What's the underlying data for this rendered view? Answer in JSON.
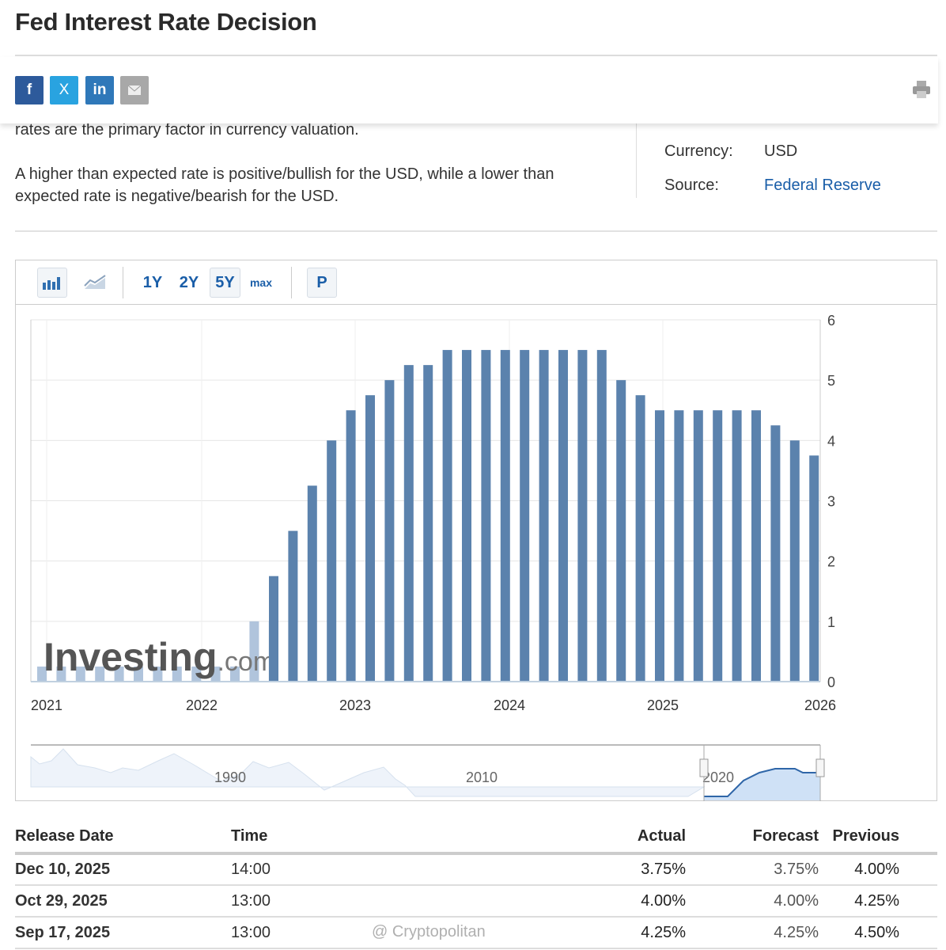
{
  "page": {
    "title": "Fed Interest Rate Decision"
  },
  "share": {
    "facebook": "f",
    "twitter": "X",
    "linkedin": "in",
    "email_icon": "envelope-icon",
    "print_icon": "printer-icon"
  },
  "description": {
    "line_partial": "rates are the primary factor in currency valuation.",
    "paragraph": "A higher than expected rate is positive/bullish for the USD, while a lower than expected rate is negative/bearish for the USD."
  },
  "meta": {
    "currency_label": "Currency:",
    "currency_value": "USD",
    "source_label": "Source:",
    "source_value": "Federal Reserve"
  },
  "toolbar": {
    "ranges": [
      "1Y",
      "2Y",
      "5Y",
      "max"
    ],
    "selected_range": "5Y",
    "p_label": "P"
  },
  "chart_data": {
    "type": "bar",
    "x_ticks": [
      "2021",
      "2022",
      "2023",
      "2024",
      "2025",
      "2026"
    ],
    "y_ticks": [
      "0",
      "1",
      "2",
      "3",
      "4",
      "5",
      "6"
    ],
    "ylim": [
      0,
      6
    ],
    "grid": true,
    "y_axis_side": "right",
    "series": [
      {
        "style": "faded",
        "color": "#b0c4dc",
        "values": [
          0.25,
          0.25,
          0.25,
          0.25,
          0.25,
          0.25,
          0.25,
          0.25,
          0.25,
          0.25,
          0.25,
          1.0,
          1.0
        ]
      },
      {
        "style": "solid",
        "color": "#5b82ad",
        "values": [
          1.75,
          2.5,
          3.25,
          4.0,
          4.5,
          4.75,
          5.0,
          5.25,
          5.25,
          5.5,
          5.5,
          5.5,
          5.5,
          5.5,
          5.5,
          5.5,
          5.5,
          5.5,
          5.0,
          4.75,
          4.5,
          4.5,
          4.5,
          4.5,
          4.5,
          4.5,
          4.25,
          4.0,
          3.75
        ]
      }
    ],
    "watermark": "Investing.com",
    "navigator_ticks": [
      "1990",
      "2010",
      "2020"
    ]
  },
  "table": {
    "headers": [
      "Release Date",
      "Time",
      "Actual",
      "Forecast",
      "Previous"
    ],
    "rows": [
      [
        "Dec 10, 2025",
        "14:00",
        "3.75%",
        "3.75%",
        "4.00%"
      ],
      [
        "Oct 29, 2025",
        "13:00",
        "4.00%",
        "4.00%",
        "4.25%"
      ],
      [
        "Sep 17, 2025",
        "13:00",
        "4.25%",
        "4.25%",
        "4.50%"
      ]
    ]
  },
  "overlay_watermark": "@ Cryptopolitan"
}
